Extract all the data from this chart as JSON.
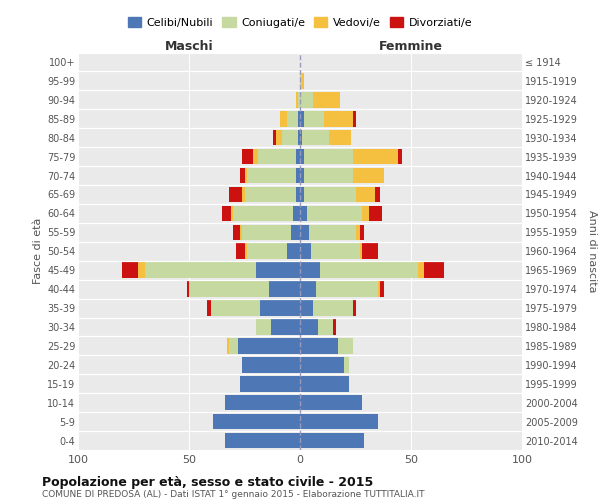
{
  "age_groups": [
    "0-4",
    "5-9",
    "10-14",
    "15-19",
    "20-24",
    "25-29",
    "30-34",
    "35-39",
    "40-44",
    "45-49",
    "50-54",
    "55-59",
    "60-64",
    "65-69",
    "70-74",
    "75-79",
    "80-84",
    "85-89",
    "90-94",
    "95-99",
    "100+"
  ],
  "birth_years": [
    "2010-2014",
    "2005-2009",
    "2000-2004",
    "1995-1999",
    "1990-1994",
    "1985-1989",
    "1980-1984",
    "1975-1979",
    "1970-1974",
    "1965-1969",
    "1960-1964",
    "1955-1959",
    "1950-1954",
    "1945-1949",
    "1940-1944",
    "1935-1939",
    "1930-1934",
    "1925-1929",
    "1920-1924",
    "1915-1919",
    "≤ 1914"
  ],
  "maschi": {
    "celibi": [
      34,
      39,
      34,
      27,
      26,
      28,
      13,
      18,
      14,
      20,
      6,
      4,
      3,
      2,
      2,
      2,
      1,
      1,
      0,
      0,
      0
    ],
    "coniugati": [
      0,
      0,
      0,
      0,
      0,
      4,
      7,
      22,
      36,
      50,
      18,
      22,
      27,
      23,
      22,
      17,
      7,
      5,
      1,
      0,
      0
    ],
    "vedovi": [
      0,
      0,
      0,
      0,
      0,
      1,
      0,
      0,
      0,
      3,
      1,
      1,
      1,
      1,
      1,
      2,
      3,
      3,
      1,
      0,
      0
    ],
    "divorziati": [
      0,
      0,
      0,
      0,
      0,
      0,
      0,
      2,
      1,
      7,
      4,
      3,
      4,
      6,
      2,
      5,
      1,
      0,
      0,
      0,
      0
    ]
  },
  "femmine": {
    "nubili": [
      29,
      35,
      28,
      22,
      20,
      17,
      8,
      6,
      7,
      9,
      5,
      4,
      3,
      2,
      2,
      2,
      1,
      2,
      0,
      0,
      0
    ],
    "coniugate": [
      0,
      0,
      0,
      0,
      2,
      7,
      7,
      18,
      28,
      44,
      22,
      21,
      25,
      23,
      22,
      22,
      12,
      9,
      6,
      1,
      0
    ],
    "vedove": [
      0,
      0,
      0,
      0,
      0,
      0,
      0,
      0,
      1,
      3,
      1,
      2,
      3,
      9,
      14,
      20,
      10,
      13,
      12,
      1,
      0
    ],
    "divorziate": [
      0,
      0,
      0,
      0,
      0,
      0,
      1,
      1,
      2,
      9,
      7,
      2,
      6,
      2,
      0,
      2,
      0,
      1,
      0,
      0,
      0
    ]
  },
  "colors": {
    "celibi": "#4e78b5",
    "coniugati": "#c5d9a0",
    "vedovi": "#f5c040",
    "divorziati": "#cc1111"
  },
  "legend_labels": [
    "Celibi/Nubili",
    "Coniugati/e",
    "Vedovi/e",
    "Divorziati/e"
  ],
  "title": "Popolazione per età, sesso e stato civile - 2015",
  "subtitle": "COMUNE DI PREDOSA (AL) - Dati ISTAT 1° gennaio 2015 - Elaborazione TUTTITALIA.IT",
  "xlabel_left": "Maschi",
  "xlabel_right": "Femmine",
  "ylabel_left": "Fasce di età",
  "ylabel_right": "Anni di nascita",
  "xlim": 100,
  "bg_color": "#eaeaea"
}
